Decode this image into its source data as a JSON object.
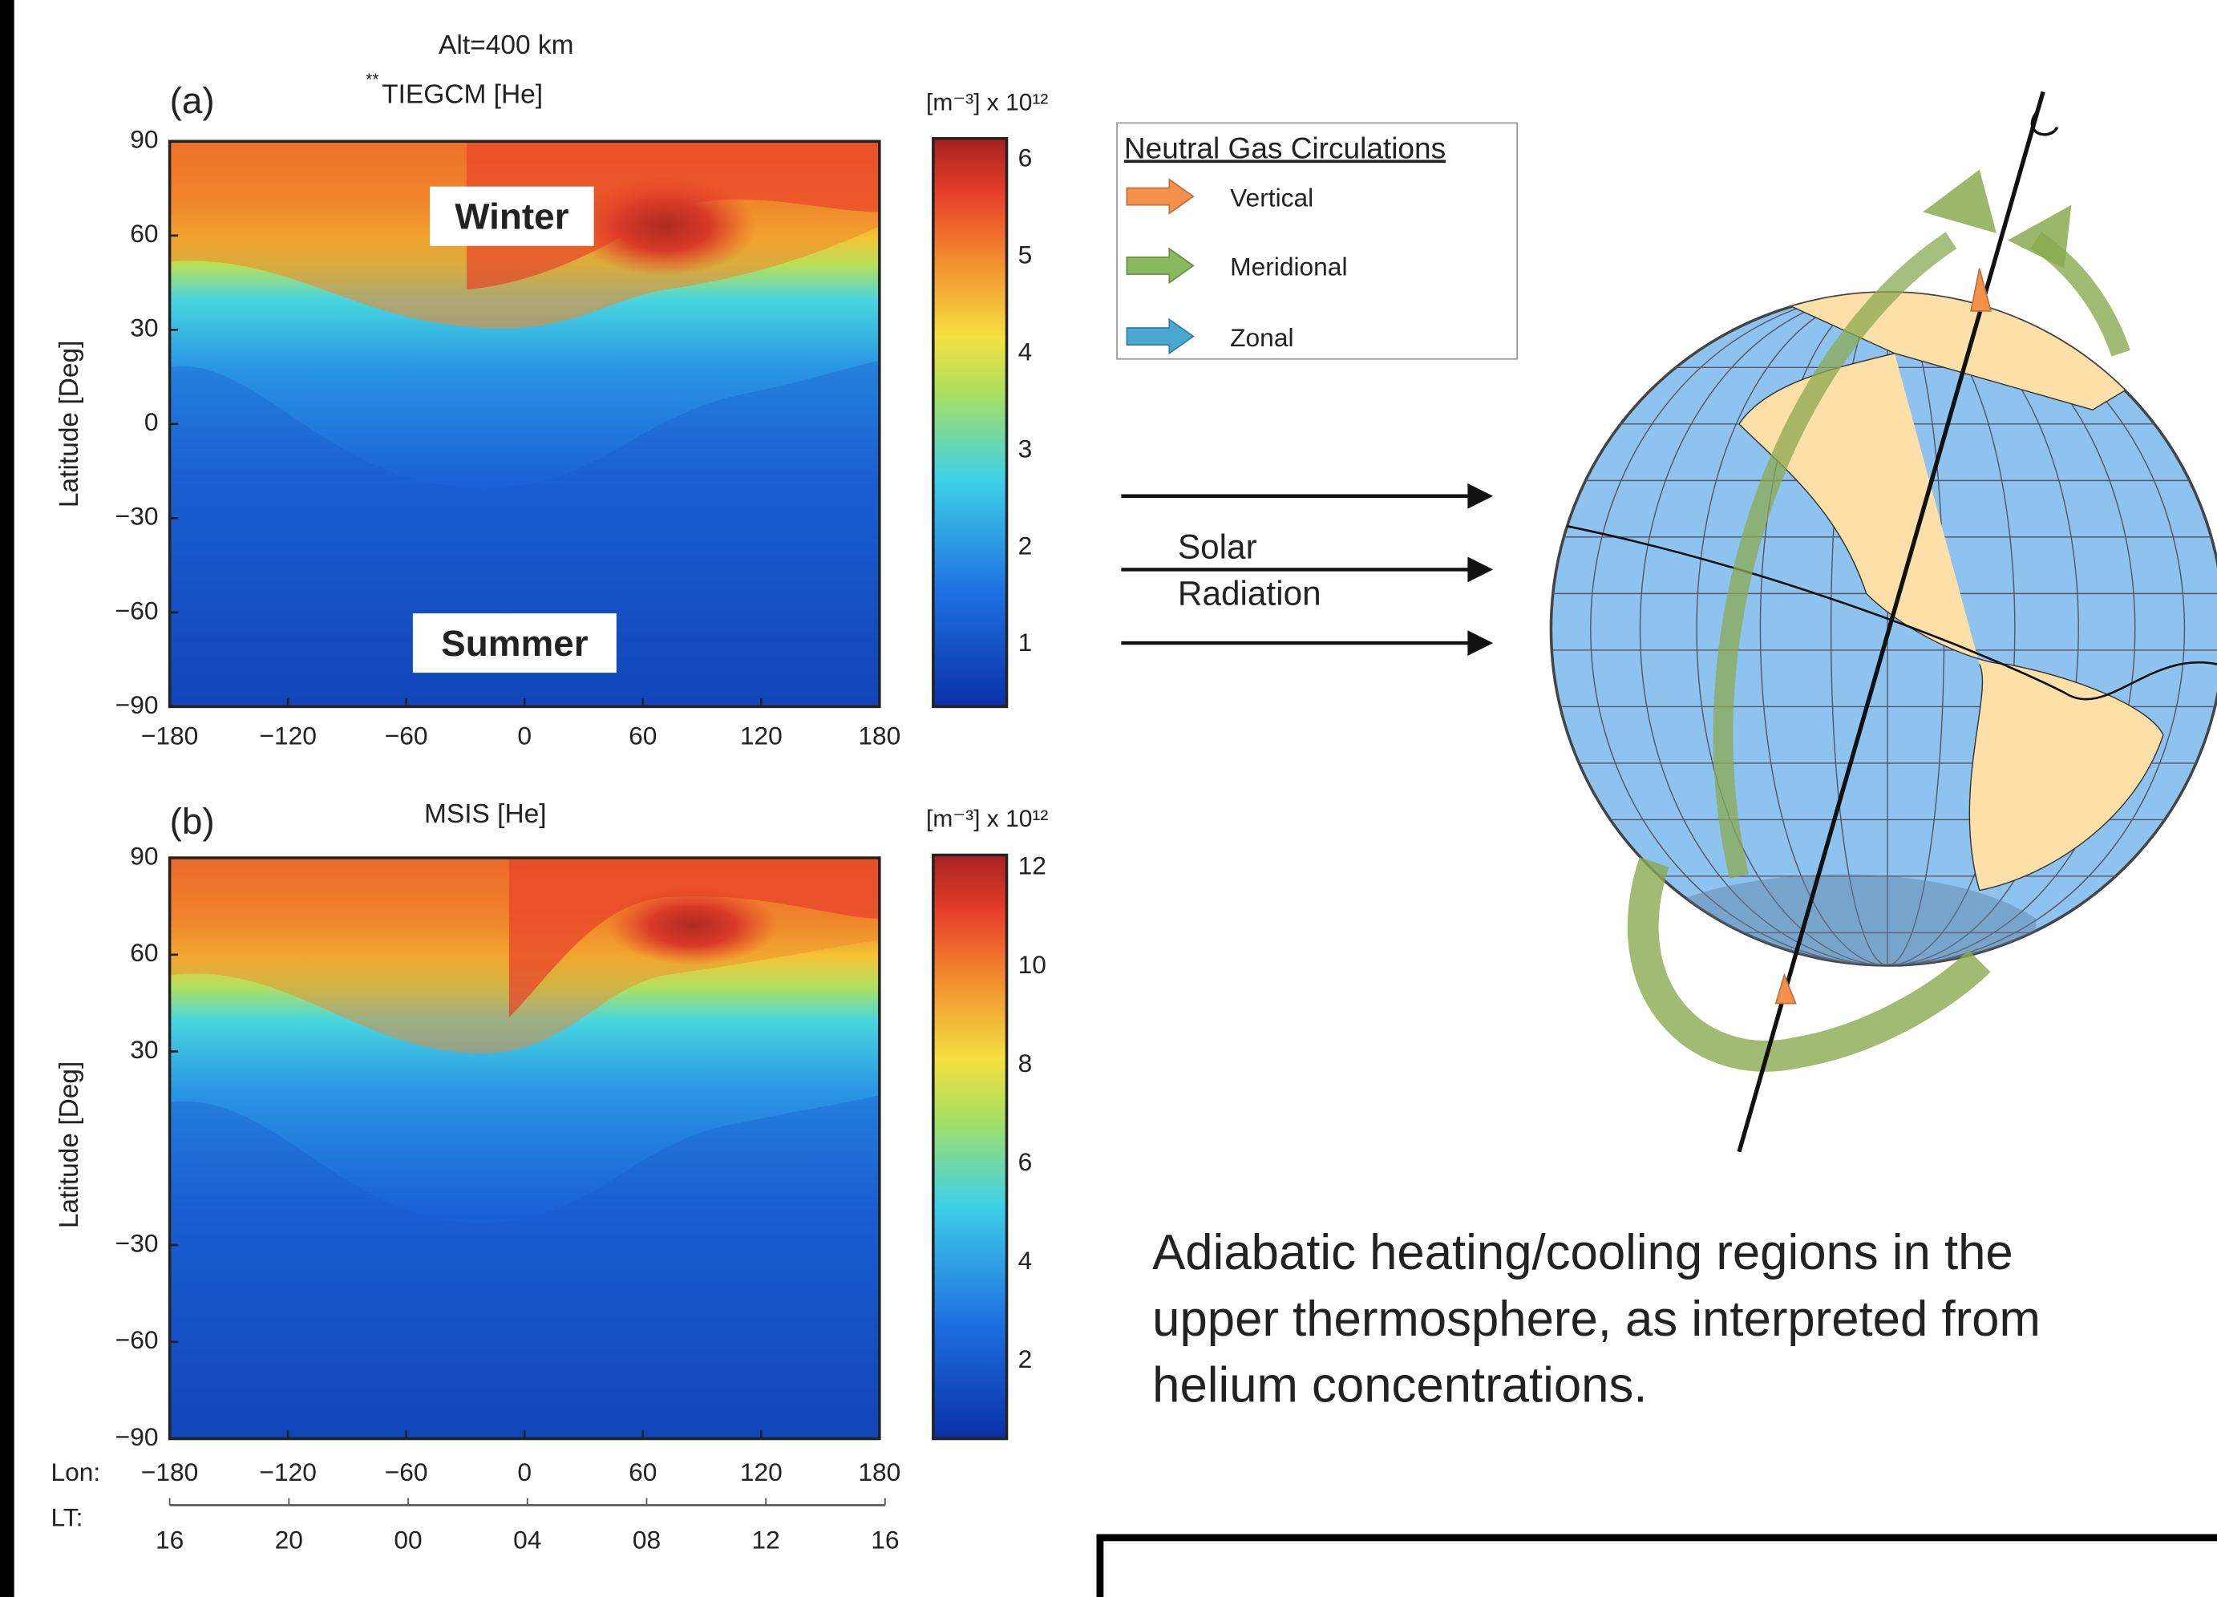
{
  "header": {
    "altitude": "Alt=400 km"
  },
  "panels": [
    {
      "label": "(a)",
      "marker": "**",
      "title": "TIEGCM   [He]",
      "y_axis_label": "Latitude [Deg]",
      "y_ticks": [
        "90",
        "60",
        "30",
        "0",
        "−30",
        "−60",
        "−90"
      ],
      "x_ticks": [
        "−180",
        "−120",
        "−60",
        "0",
        "60",
        "120",
        "180"
      ],
      "colorbar_unit": "[m⁻³] x 10¹²",
      "colorbar_ticks": [
        "6",
        "5",
        "4",
        "3",
        "2",
        "1"
      ],
      "annotations": [
        "Winter",
        "Summer"
      ]
    },
    {
      "label": "(b)",
      "title": "MSIS   [He]",
      "y_axis_label": "Latitude [Deg]",
      "y_ticks": [
        "90",
        "60",
        "30",
        "−30",
        "−60",
        "−90"
      ],
      "x_prefix": "Lon:",
      "x_ticks": [
        "−180",
        "−120",
        "−60",
        "0",
        "60",
        "120",
        "180"
      ],
      "lt_label": "LT:",
      "lt_ticks": [
        "16",
        "20",
        "00",
        "04",
        "08",
        "12",
        "16"
      ],
      "colorbar_unit": "[m⁻³] x 10¹²",
      "colorbar_ticks": [
        "12",
        "10",
        "8",
        "6",
        "4",
        "2"
      ]
    }
  ],
  "legend": {
    "title": "Neutral Gas Circulations",
    "items": [
      "Vertical",
      "Meridional",
      "Zonal"
    ]
  },
  "solar_radiation": [
    "Solar",
    "Radiation"
  ],
  "caption": [
    "Adiabatic heating/cooling regions in the",
    "upper thermosphere, as interpreted from",
    "helium concentrations."
  ]
}
